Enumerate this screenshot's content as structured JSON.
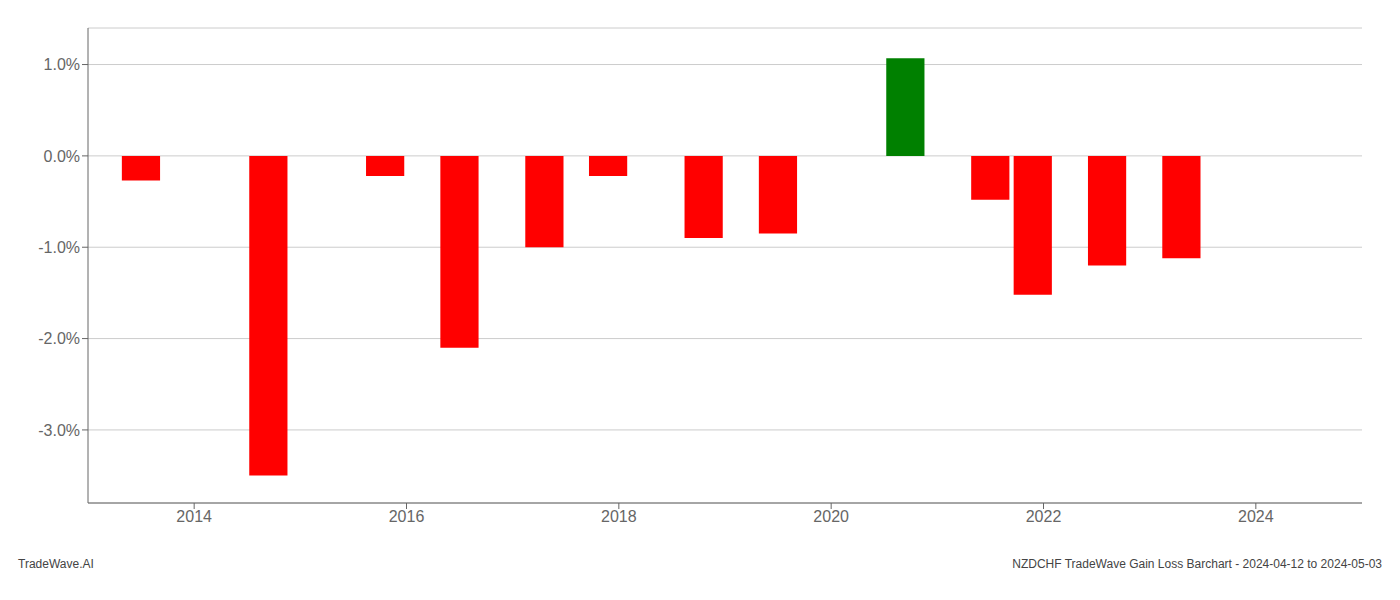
{
  "chart_data": {
    "type": "bar",
    "x": [
      2013.5,
      2014.7,
      2015.8,
      2016.5,
      2017.3,
      2017.9,
      2018.8,
      2019.5,
      2020.7,
      2021.5,
      2021.9,
      2022.6,
      2023.3
    ],
    "values": [
      -0.27,
      -3.5,
      -0.22,
      -2.1,
      -1.0,
      -0.22,
      -0.9,
      -0.85,
      1.07,
      -0.48,
      -1.52,
      -1.2,
      -1.12
    ],
    "colors": [
      "#ff0000",
      "#ff0000",
      "#ff0000",
      "#ff0000",
      "#ff0000",
      "#ff0000",
      "#ff0000",
      "#ff0000",
      "#008000",
      "#ff0000",
      "#ff0000",
      "#ff0000",
      "#ff0000"
    ],
    "xlim": [
      2013.0,
      2025.0
    ],
    "ylim": [
      -3.8,
      1.4
    ],
    "xticks": [
      2014,
      2016,
      2018,
      2020,
      2022,
      2024
    ],
    "yticks": [
      {
        "value": 1.0,
        "label": "1.0%"
      },
      {
        "value": 0.0,
        "label": "0.0%"
      },
      {
        "value": -1.0,
        "label": "-1.0%"
      },
      {
        "value": -2.0,
        "label": "-2.0%"
      },
      {
        "value": -3.0,
        "label": "-3.0%"
      }
    ],
    "grid": true,
    "annotations": [
      "TradeWave.AI",
      "NZDCHF TradeWave Gain Loss Barchart - 2024-04-12 to 2024-05-03"
    ]
  }
}
